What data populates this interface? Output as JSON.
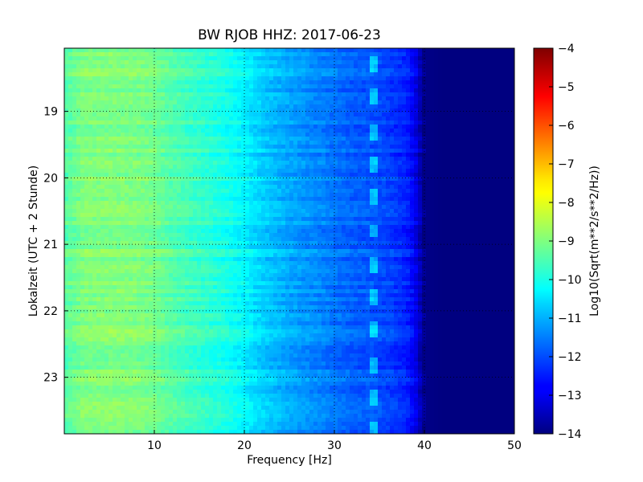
{
  "chart_data": {
    "type": "heatmap",
    "title": "BW RJOB HHZ: 2017-06-23",
    "xlabel": "Frequency [Hz]",
    "ylabel": "Lokalzeit (UTC + 2 Stunde)",
    "xlim": [
      0,
      50
    ],
    "ylim_hours": [
      18.05,
      23.85
    ],
    "y_inverted": true,
    "x_ticks": [
      "10",
      "20",
      "30",
      "40",
      "50"
    ],
    "y_ticks": [
      "19",
      "20",
      "21",
      "22",
      "23"
    ],
    "grid": true,
    "colormap": "jet",
    "colorbar": {
      "label": "Log10(Sqrt(m**2/s**2/Hz))",
      "range": [
        -14,
        -4
      ],
      "ticks": [
        "−4",
        "−5",
        "−6",
        "−7",
        "−8",
        "−9",
        "−10",
        "−11",
        "−12",
        "−13",
        "−14"
      ]
    },
    "frequency_profile": {
      "frequency_hz": [
        0,
        2,
        5,
        8,
        10,
        12,
        15,
        18,
        20,
        22,
        25,
        28,
        30,
        32,
        34,
        36,
        38,
        39,
        40,
        42,
        45,
        50
      ],
      "log10_amplitude": [
        -9.4,
        -9.0,
        -8.95,
        -9.0,
        -9.1,
        -9.4,
        -9.7,
        -10.0,
        -10.3,
        -10.7,
        -11.1,
        -11.4,
        -11.6,
        -11.8,
        -11.9,
        -12.1,
        -12.4,
        -12.9,
        -13.9,
        -14.0,
        -14.0,
        -14.0
      ]
    },
    "tonal_line_hz": 34.5
  }
}
